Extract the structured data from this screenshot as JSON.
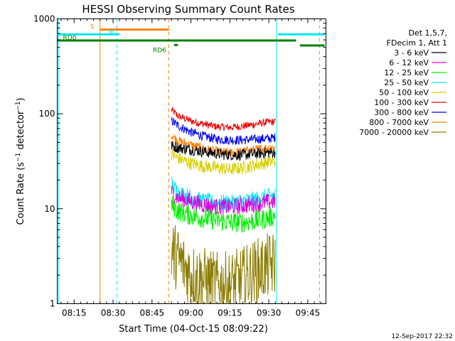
{
  "chart_data": {
    "type": "line",
    "title": "HESSI Observing Summary Count Rates",
    "xlabel": "Start Time (04-Oct-15 08:09:22)",
    "ylabel": "Count Rate (s⁻¹ detector⁻¹)",
    "ylabel_main": "Count Rate (s",
    "ylabel_mid": " detector",
    "ylabel_end": ")",
    "ylabel_sup": "−1",
    "yscale": "log",
    "ylim": [
      1,
      1000
    ],
    "xlim_minutes": [
      488.5,
      592
    ],
    "yticks": [
      1,
      10,
      100,
      1000
    ],
    "ytick_labels": [
      "1",
      "10",
      "100",
      "1000"
    ],
    "xticks_minutes": [
      495,
      510,
      525,
      540,
      555,
      570,
      585
    ],
    "xtick_labels": [
      "08:15",
      "08:30",
      "08:45",
      "09:00",
      "09:15",
      "09:30",
      "09:45"
    ],
    "footer": "12-Sep-2017 22:32",
    "legend": {
      "header": [
        "Det 1,5,7,",
        "FDecim 1, Att 1"
      ],
      "placement": "right-outside",
      "entries": [
        {
          "label": "3 - 6 keV",
          "color": "#000000"
        },
        {
          "label": "6 - 12 keV",
          "color": "#e000e0"
        },
        {
          "label": "12 - 25 keV",
          "color": "#00ee00"
        },
        {
          "label": "25 - 50 keV",
          "color": "#00e8f0"
        },
        {
          "label": "50 - 100 keV",
          "color": "#d8d000"
        },
        {
          "label": "100 - 300 keV",
          "color": "#ee0000"
        },
        {
          "label": "300 - 800 keV",
          "color": "#0000ee"
        },
        {
          "label": "800 - 7000 keV",
          "color": "#ff8000"
        },
        {
          "label": "7000 - 20000 keV",
          "color": "#8c7c00"
        }
      ]
    },
    "data_start_min": 532.5,
    "data_end_min": 572.5,
    "series": [
      {
        "name": "100 - 300 keV",
        "color": "#ee0000",
        "values": [
          [
            532.5,
            110
          ],
          [
            535,
            95
          ],
          [
            540,
            84
          ],
          [
            545,
            78
          ],
          [
            550,
            73
          ],
          [
            555,
            72
          ],
          [
            560,
            74
          ],
          [
            565,
            78
          ],
          [
            570,
            82
          ],
          [
            572.5,
            82
          ]
        ],
        "noise": 0.04
      },
      {
        "name": "300 - 800 keV",
        "color": "#0000ee",
        "values": [
          [
            532.5,
            85
          ],
          [
            535,
            75
          ],
          [
            540,
            64
          ],
          [
            545,
            58
          ],
          [
            550,
            54
          ],
          [
            555,
            53
          ],
          [
            560,
            53
          ],
          [
            565,
            54
          ],
          [
            570,
            55
          ],
          [
            572.5,
            56
          ]
        ],
        "noise": 0.05
      },
      {
        "name": "800 - 7000 keV",
        "color": "#ff8000",
        "values": [
          [
            532.5,
            60
          ],
          [
            535,
            52
          ],
          [
            540,
            47
          ],
          [
            545,
            43
          ],
          [
            550,
            40
          ],
          [
            555,
            39
          ],
          [
            560,
            40
          ],
          [
            565,
            42
          ],
          [
            570,
            44
          ],
          [
            572.5,
            45
          ]
        ],
        "noise": 0.05
      },
      {
        "name": "3 - 6 keV",
        "color": "#000000",
        "values": [
          [
            532.5,
            46
          ],
          [
            535,
            44
          ],
          [
            540,
            42
          ],
          [
            545,
            40
          ],
          [
            550,
            38
          ],
          [
            555,
            37
          ],
          [
            560,
            37
          ],
          [
            565,
            38
          ],
          [
            570,
            39
          ],
          [
            572.5,
            39
          ]
        ],
        "noise": 0.06
      },
      {
        "name": "50 - 100 keV",
        "color": "#d8d000",
        "values": [
          [
            532.5,
            38
          ],
          [
            535,
            34
          ],
          [
            540,
            30
          ],
          [
            545,
            28
          ],
          [
            550,
            27
          ],
          [
            555,
            26
          ],
          [
            560,
            27
          ],
          [
            565,
            29
          ],
          [
            570,
            31
          ],
          [
            572.5,
            32
          ]
        ],
        "noise": 0.07
      },
      {
        "name": "25 - 50 keV",
        "color": "#00e8f0",
        "values": [
          [
            532.5,
            18
          ],
          [
            535,
            15
          ],
          [
            540,
            13
          ],
          [
            545,
            12
          ],
          [
            550,
            11.5
          ],
          [
            555,
            11.5
          ],
          [
            560,
            12
          ],
          [
            565,
            12.5
          ],
          [
            570,
            13.5
          ],
          [
            572.5,
            14
          ]
        ],
        "noise": 0.09
      },
      {
        "name": "6 - 12 keV",
        "color": "#e000e0",
        "values": [
          [
            532.5,
            15
          ],
          [
            535,
            13
          ],
          [
            540,
            12
          ],
          [
            545,
            11
          ],
          [
            550,
            10.5
          ],
          [
            555,
            10.5
          ],
          [
            560,
            10.8
          ],
          [
            565,
            11.2
          ],
          [
            570,
            11.8
          ],
          [
            572.5,
            12
          ]
        ],
        "noise": 0.09
      },
      {
        "name": "12 - 25 keV",
        "color": "#00ee00",
        "values": [
          [
            532.5,
            11
          ],
          [
            535,
            9.5
          ],
          [
            540,
            8.5
          ],
          [
            545,
            8
          ],
          [
            550,
            7.5
          ],
          [
            555,
            7.2
          ],
          [
            560,
            7.2
          ],
          [
            565,
            7.5
          ],
          [
            570,
            8
          ],
          [
            572.5,
            8.5
          ]
        ],
        "noise": 0.11
      },
      {
        "name": "7000 - 20000 keV",
        "color": "#8c7c00",
        "values": [
          [
            532.5,
            3.5
          ],
          [
            535,
            3
          ],
          [
            540,
            2
          ],
          [
            545,
            1.8
          ],
          [
            550,
            1.6
          ],
          [
            555,
            1.6
          ],
          [
            560,
            1.8
          ],
          [
            565,
            2.2
          ],
          [
            570,
            2.5
          ],
          [
            572.5,
            2.6
          ]
        ],
        "noise": 0.35
      }
    ],
    "annotations": {
      "flag_bars": [
        {
          "label": "S",
          "color": "#ff8000",
          "start_min": 505,
          "end_min": 531.5,
          "y_log": 2.887
        },
        {
          "label": "N",
          "color": "#00e8f0",
          "start_min": 488.5,
          "end_min": 512.5,
          "y_log": 2.836
        },
        {
          "label": "N",
          "color": "#00e8f0",
          "start_min": 573.5,
          "end_min": 591.5,
          "y_log": 2.836
        },
        {
          "label": "RD0",
          "color": "#008000",
          "start_min": 488.5,
          "end_min": 580.5,
          "y_log": 2.772
        },
        {
          "label": "",
          "color": "#008000",
          "start_min": 582,
          "end_min": 591.5,
          "y_log": 2.719
        },
        {
          "label": "RD6",
          "color": "#008000",
          "start_min": 533.5,
          "end_min": 535,
          "y_log": 2.724
        }
      ],
      "vlines": [
        {
          "min": 489,
          "color": "#00e8f0",
          "style": "solid"
        },
        {
          "min": 505,
          "color": "#ff8000",
          "style": "solid"
        },
        {
          "min": 511.5,
          "color": "#00e8f0",
          "style": "dashed"
        },
        {
          "min": 531.5,
          "color": "#ff8000",
          "style": "dashed"
        },
        {
          "min": 573,
          "color": "#00e8f0",
          "style": "solid"
        },
        {
          "min": 589.5,
          "color": "#00e8f0",
          "style": "dashed"
        }
      ]
    }
  }
}
